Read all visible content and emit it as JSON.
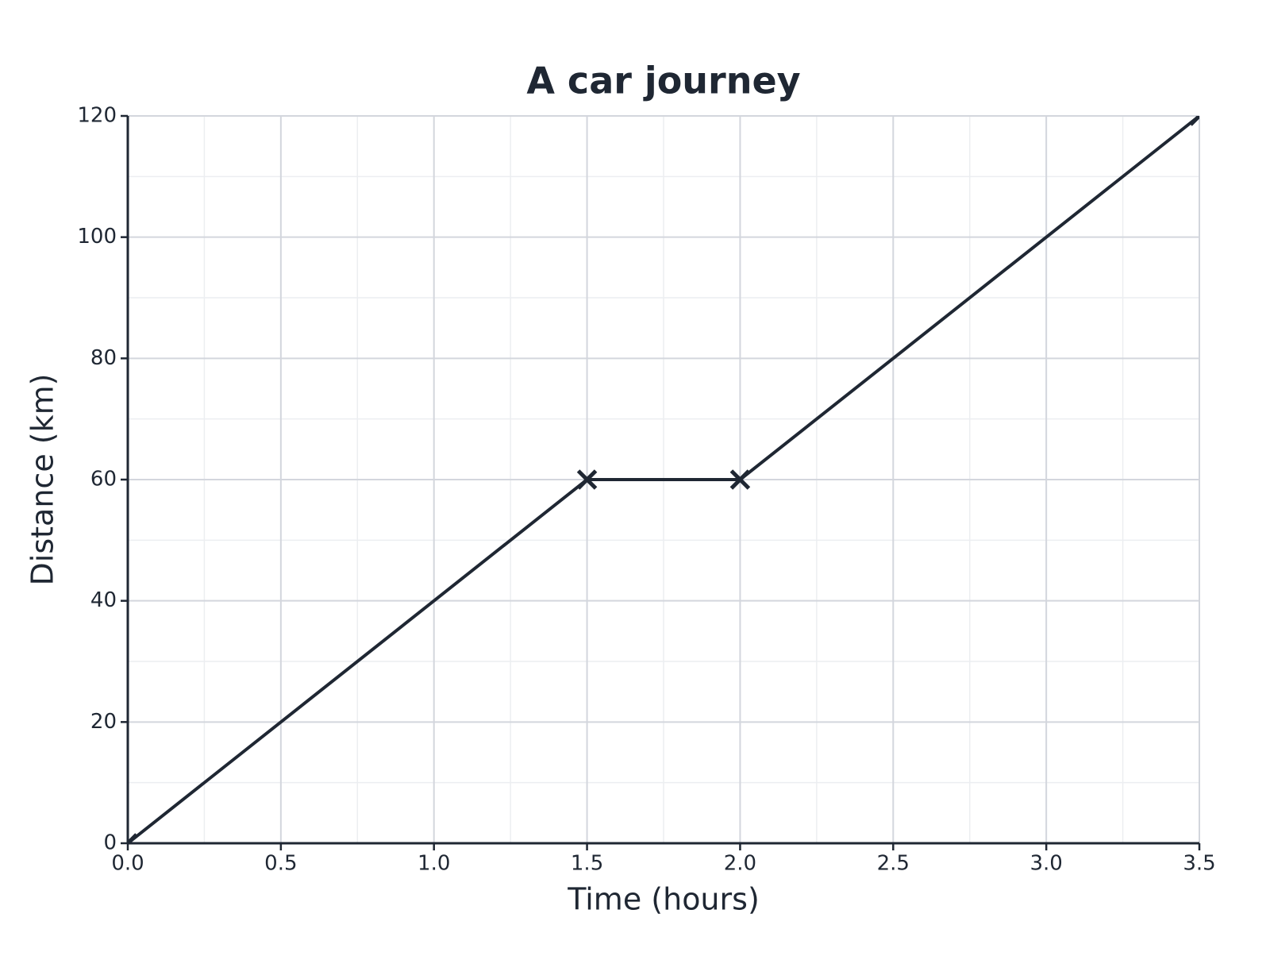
{
  "chart_data": {
    "type": "line",
    "title": "A car journey",
    "x_label": "Time (hours)",
    "y_label": "Distance (km)",
    "x": [
      0,
      1.5,
      2,
      3.5
    ],
    "series": [
      {
        "name": "Distance",
        "color": "#1f2733",
        "values": [
          0,
          60,
          60,
          120
        ],
        "marker": "x"
      }
    ],
    "xlim": [
      0,
      3.5
    ],
    "xticks": [
      {
        "value": 0,
        "label": "0.0"
      },
      0.5,
      {
        "value": 1,
        "label": "1.0"
      },
      1.5,
      {
        "value": 2,
        "label": "2.0"
      },
      2.5,
      {
        "value": 3,
        "label": "3.0"
      },
      3.5
    ],
    "ylim": [
      0,
      120
    ],
    "yticks": [
      0,
      20,
      40,
      60,
      80,
      100,
      120
    ],
    "grid": true,
    "minor_grid": true,
    "legend": false
  }
}
